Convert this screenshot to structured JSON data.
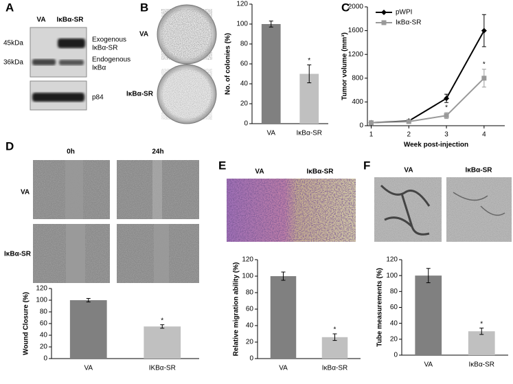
{
  "chart_data": [
    {
      "type": "bar",
      "ylabel": "No. of colonies (%)",
      "categories": [
        "VA",
        "IκBα-SR"
      ],
      "values": [
        100,
        50
      ],
      "errors": [
        3,
        9
      ],
      "colors": [
        "#808080",
        "#c0c0c0"
      ],
      "ylim": [
        0,
        120
      ],
      "yticks": [
        0,
        20,
        40,
        60,
        80,
        100,
        120
      ],
      "annotations": [
        "*"
      ]
    },
    {
      "type": "line",
      "xlabel": "Week post-injection",
      "ylabel": "Tumor volume (mm³)",
      "x": [
        1,
        2,
        3,
        4
      ],
      "xlim": [
        0.9,
        4.55
      ],
      "xticks": [
        1,
        2,
        3,
        4
      ],
      "ylim": [
        0,
        2000
      ],
      "yticks": [
        0,
        400,
        800,
        1200,
        1600,
        2000
      ],
      "legend": "upper left",
      "series": [
        {
          "name": "pWPI",
          "color": "#000000",
          "marker": "diamond",
          "values": [
            50,
            80,
            460,
            1600
          ],
          "errors": [
            10,
            10,
            70,
            270
          ]
        },
        {
          "name": "IκBα-SR",
          "color": "#999999",
          "marker": "square",
          "values": [
            50,
            70,
            170,
            800
          ],
          "errors": [
            10,
            10,
            50,
            150
          ]
        }
      ],
      "annotations": [
        "*",
        "*"
      ]
    },
    {
      "type": "bar",
      "ylabel": "Wound Closure (%)",
      "categories": [
        "VA",
        "IKBα-SR"
      ],
      "values": [
        100,
        55
      ],
      "errors": [
        3,
        3
      ],
      "colors": [
        "#808080",
        "#c0c0c0"
      ],
      "ylim": [
        0,
        120
      ],
      "yticks": [
        0,
        20,
        40,
        60,
        80,
        100,
        120
      ],
      "annotations": [
        "*"
      ]
    },
    {
      "type": "bar",
      "ylabel": "Relative migration ability (%)",
      "categories": [
        "VA",
        "IκBα-SR"
      ],
      "values": [
        100,
        26
      ],
      "errors": [
        5,
        4
      ],
      "colors": [
        "#808080",
        "#c0c0c0"
      ],
      "ylim": [
        0,
        120
      ],
      "yticks": [
        0,
        20,
        40,
        60,
        80,
        100,
        120
      ],
      "annotations": [
        "*"
      ]
    },
    {
      "type": "bar",
      "ylabel": "Tube measurements (%)",
      "categories": [
        "VA",
        "IκBα-SR"
      ],
      "values": [
        100,
        30
      ],
      "errors": [
        9,
        4
      ],
      "colors": [
        "#808080",
        "#c0c0c0"
      ],
      "ylim": [
        0,
        120
      ],
      "yticks": [
        0,
        20,
        40,
        60,
        80,
        100,
        120
      ],
      "annotations": [
        "*"
      ]
    }
  ],
  "panels": {
    "A": {
      "letter": "A",
      "lanes": [
        "VA",
        "IκBα-SR"
      ],
      "markers": [
        "45kDa",
        "36kDa"
      ],
      "exogenous": [
        "Exogenous",
        "IκBα-SR"
      ],
      "endogenous": [
        "Endogenous",
        "IκBα"
      ],
      "loading": "p84"
    },
    "B": {
      "letter": "B",
      "rows": [
        "VA",
        "IκBα-SR"
      ]
    },
    "C": {
      "letter": "C"
    },
    "D": {
      "letter": "D",
      "columns": [
        "0h",
        "24h"
      ],
      "rows": [
        "VA",
        "IκBα-SR"
      ]
    },
    "E": {
      "letter": "E",
      "columns": [
        "VA",
        "IκBα-SR"
      ]
    },
    "F": {
      "letter": "F",
      "columns": [
        "VA",
        "IκBα-SR"
      ]
    }
  }
}
